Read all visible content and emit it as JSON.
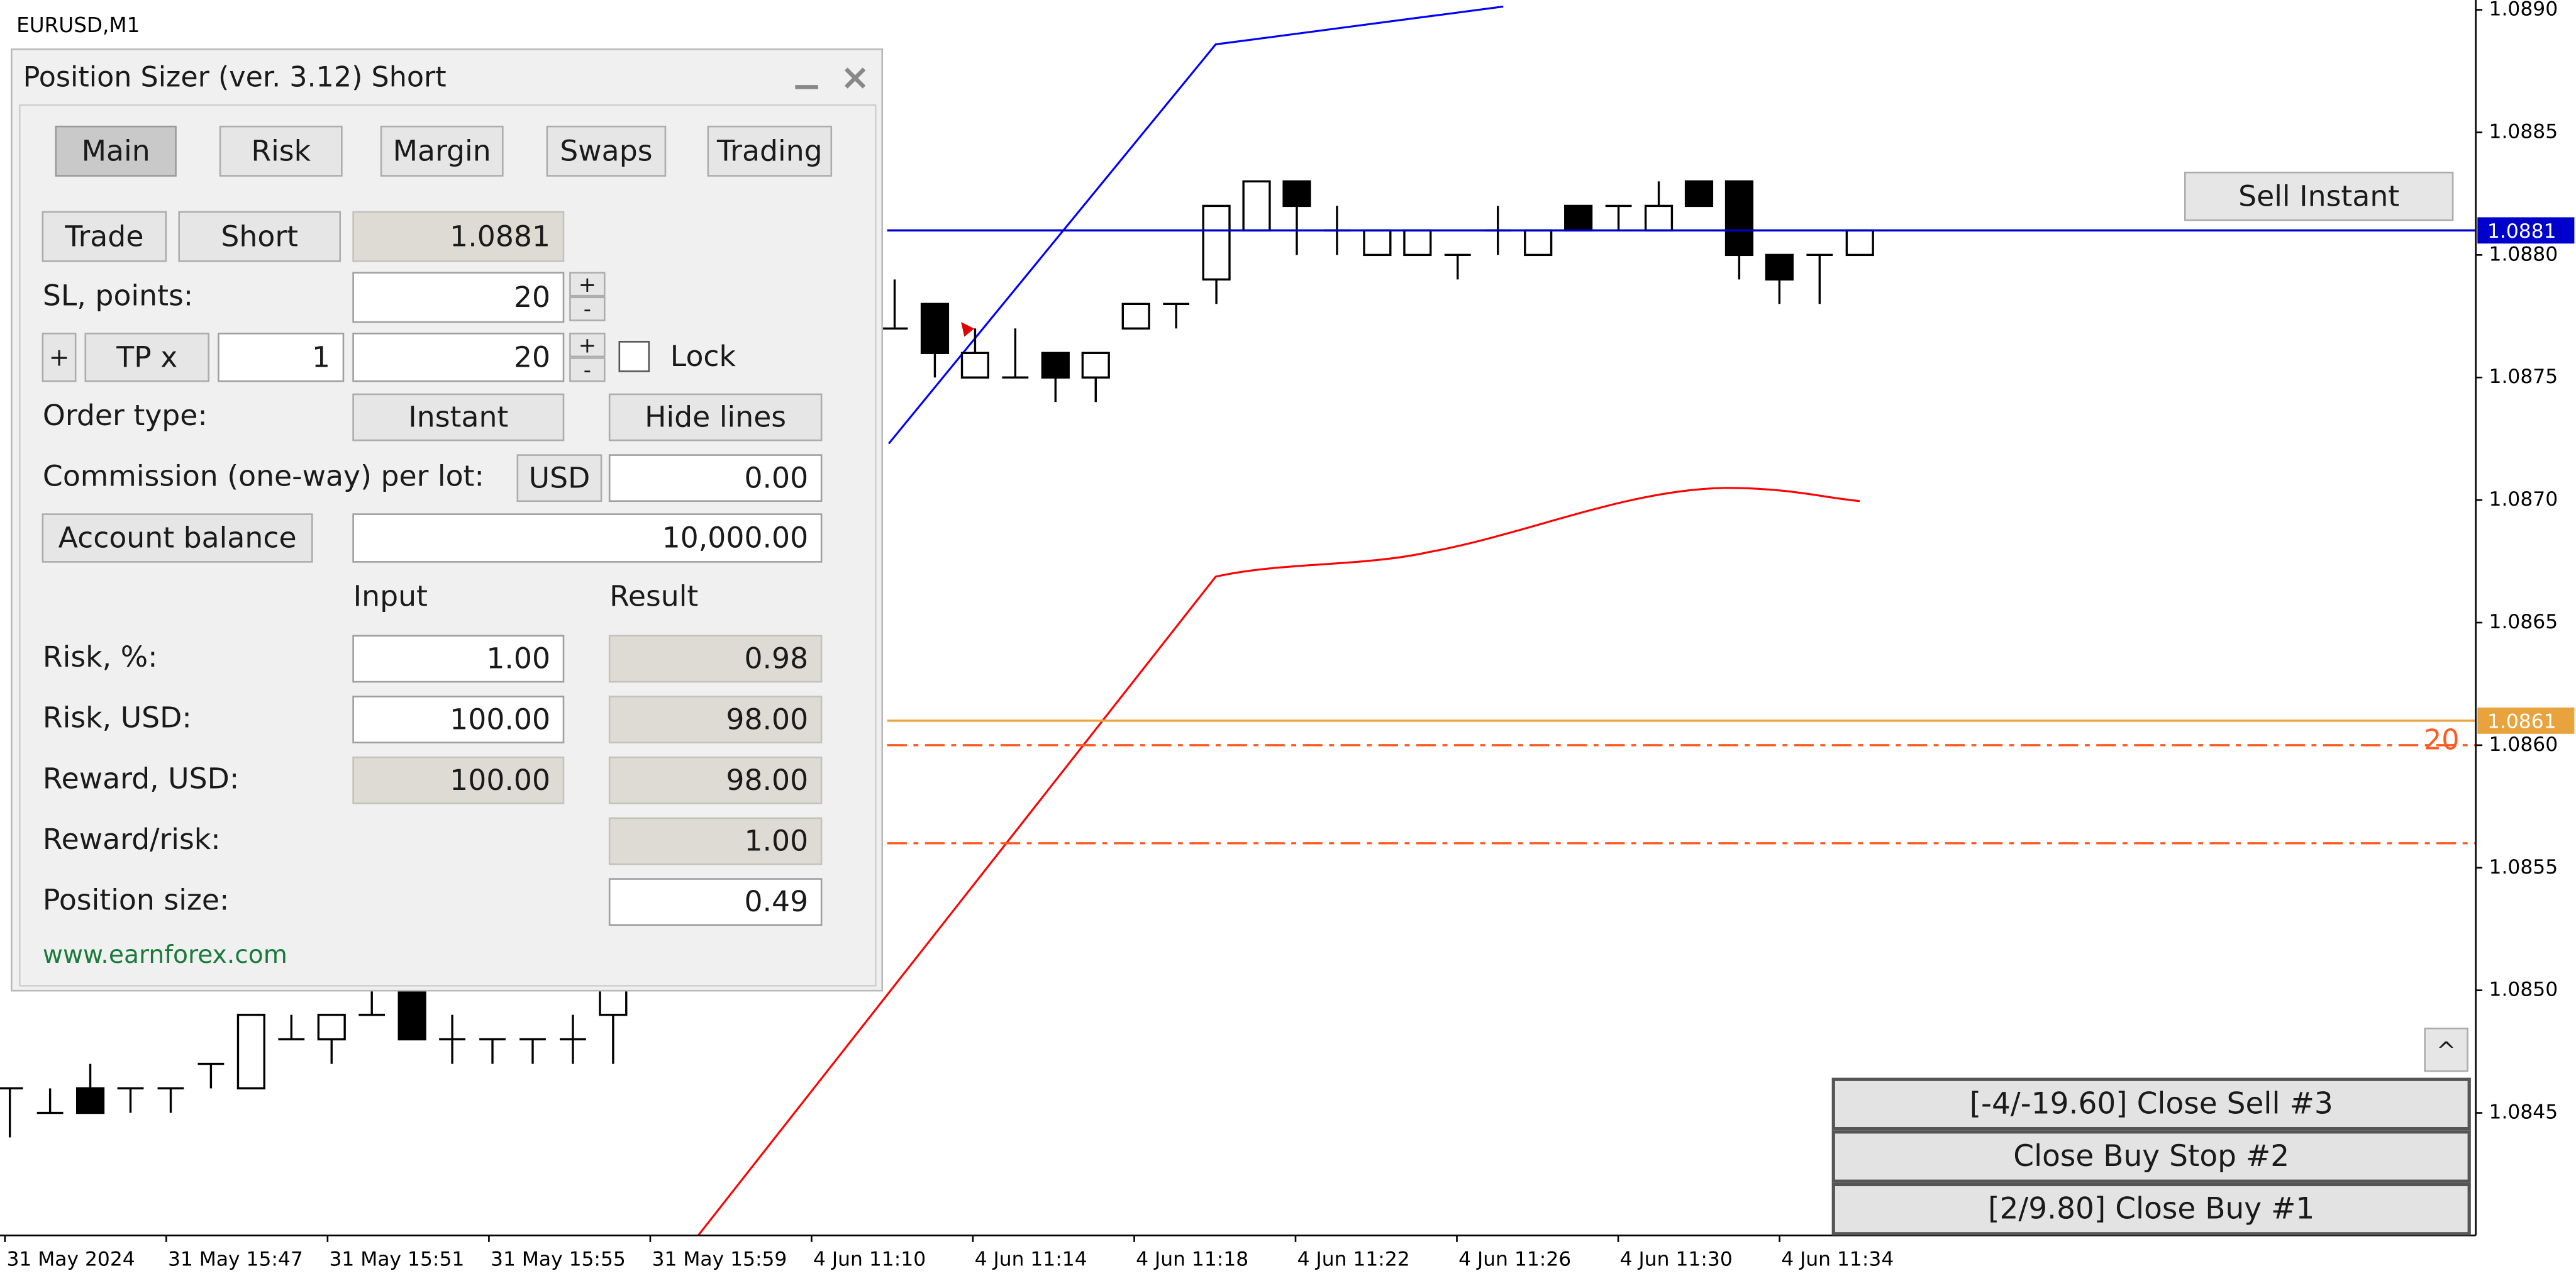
{
  "window": {
    "symbol": "EURUSD,M1"
  },
  "chart": {
    "type": "candlestick",
    "ylim": [
      1.084,
      1.08904
    ],
    "yticks": [
      {
        "value": 1.089,
        "label": "1.0890"
      },
      {
        "value": 1.0885,
        "label": "1.0885"
      },
      {
        "value": 1.088,
        "label": "1.0880"
      },
      {
        "value": 1.0875,
        "label": "1.0875"
      },
      {
        "value": 1.087,
        "label": "1.0870"
      },
      {
        "value": 1.0865,
        "label": "1.0865"
      },
      {
        "value": 1.086,
        "label": "1.0860"
      },
      {
        "value": 1.0855,
        "label": "1.0855"
      },
      {
        "value": 1.085,
        "label": "1.0850"
      },
      {
        "value": 1.0845,
        "label": "1.0845"
      }
    ],
    "x_labels": [
      "31 May 2024",
      "31 May 15:47",
      "31 May 15:51",
      "31 May 15:55",
      "31 May 15:59",
      "4 Jun 11:10",
      "4 Jun 11:14",
      "4 Jun 11:18",
      "4 Jun 11:22",
      "4 Jun 11:26",
      "4 Jun 11:30",
      "4 Jun 11:34"
    ],
    "open": [
      1.0846,
      1.0845,
      1.0846,
      1.0846,
      1.0846,
      1.0847,
      1.0846,
      1.0848,
      1.0848,
      1.0849,
      1.085,
      1.0848,
      1.0848,
      1.0848,
      1.0848,
      1.0849,
      null,
      null,
      null,
      null,
      null,
      null,
      1.0877,
      1.0878,
      1.0875,
      1.0875,
      1.0876,
      1.0875,
      1.0877,
      1.0878,
      1.0879,
      1.0881,
      1.0883,
      1.0881,
      1.088,
      1.088,
      1.088,
      1.0881,
      1.088,
      1.0882,
      1.0882,
      1.0881,
      1.0883,
      1.0883,
      1.088,
      1.088,
      1.088
    ],
    "high": [
      1.0846,
      1.0846,
      1.0847,
      1.0846,
      1.0846,
      1.0847,
      1.0849,
      1.0849,
      1.0849,
      1.085,
      1.085,
      1.0849,
      1.0848,
      1.0848,
      1.0849,
      1.085,
      null,
      null,
      null,
      null,
      null,
      null,
      1.0879,
      1.0878,
      1.0877,
      1.0877,
      1.0876,
      1.0876,
      1.0878,
      1.0878,
      1.0882,
      1.0883,
      1.0883,
      1.0882,
      1.0881,
      1.0881,
      1.088,
      1.0882,
      1.0881,
      1.0882,
      1.0882,
      1.0883,
      1.0883,
      1.0883,
      1.088,
      1.088,
      1.0881
    ],
    "low": [
      1.0844,
      1.0845,
      1.0845,
      1.0845,
      1.0845,
      1.0846,
      1.0846,
      1.0848,
      1.0847,
      1.0849,
      1.0848,
      1.0847,
      1.0847,
      1.0847,
      1.0847,
      1.0847,
      null,
      null,
      null,
      null,
      null,
      null,
      1.0877,
      1.0875,
      1.0875,
      1.0875,
      1.0874,
      1.0874,
      1.0877,
      1.0877,
      1.0878,
      1.0881,
      1.088,
      1.088,
      1.088,
      1.088,
      1.0879,
      1.088,
      1.088,
      1.0881,
      1.0881,
      1.0881,
      1.0882,
      1.0879,
      1.0878,
      1.0878,
      1.088
    ],
    "close": [
      1.0846,
      1.0845,
      1.0845,
      1.0846,
      1.0846,
      1.0847,
      1.0849,
      1.0848,
      1.0849,
      1.0849,
      1.0848,
      1.0848,
      1.0848,
      1.0848,
      1.0848,
      1.085,
      null,
      null,
      null,
      null,
      null,
      null,
      1.0877,
      1.0876,
      1.0876,
      1.0875,
      1.0875,
      1.0876,
      1.0878,
      1.0878,
      1.0882,
      1.0883,
      1.0882,
      1.0881,
      1.0881,
      1.0881,
      1.088,
      1.0881,
      1.0881,
      1.0881,
      1.0882,
      1.0882,
      1.0882,
      1.088,
      1.0879,
      1.088,
      1.0881
    ],
    "levels": [
      {
        "value": 1.0881,
        "label": "1.0881",
        "color": "#0000cd"
      },
      {
        "value": 1.0861,
        "label": "1.0861",
        "color": "#e8a33c"
      },
      {
        "value": 1.086,
        "tag": "20",
        "color": "#ff5a1f"
      },
      {
        "value": 1.0856,
        "color": "#ff5a1f"
      }
    ]
  },
  "panel": {
    "title": "Position Sizer (ver. 3.12) Short",
    "tabs": [
      "Main",
      "Risk",
      "Margin",
      "Swaps",
      "Trading"
    ],
    "trade_button": "Trade",
    "direction_button": "Short",
    "entry": "1.0881",
    "sl_label": "SL, points:",
    "sl": "20",
    "spin_up": "+",
    "spin_down": "-",
    "tp_add": "+",
    "tp_button": "TP x",
    "tp_multiplier": "1",
    "tp": "20",
    "lock": "Lock",
    "order_type_label": "Order type:",
    "order_type": "Instant",
    "hide_lines": "Hide lines",
    "commission_label": "Commission (one-way) per lot:",
    "commission_currency": "USD",
    "commission": "0.00",
    "account_button": "Account balance",
    "account_balance": "10,000.00",
    "input_header": "Input",
    "result_header": "Result",
    "rows": [
      {
        "label": "Risk, %:",
        "input": "1.00",
        "result": "0.98"
      },
      {
        "label": "Risk, USD:",
        "input": "100.00",
        "result": "98.00"
      },
      {
        "label": "Reward, USD:",
        "input": "100.00",
        "result": "98.00"
      },
      {
        "label": "Reward/risk:",
        "result": "1.00"
      },
      {
        "label": "Position size:",
        "result": "0.49"
      }
    ],
    "website": "www.earnforex.com"
  },
  "buttons": {
    "sell": "Sell Instant",
    "collapse": "^",
    "close": [
      "[-4/-19.60] Close Sell #3",
      "Close Buy Stop #2",
      "[2/9.80] Close Buy #1"
    ]
  }
}
